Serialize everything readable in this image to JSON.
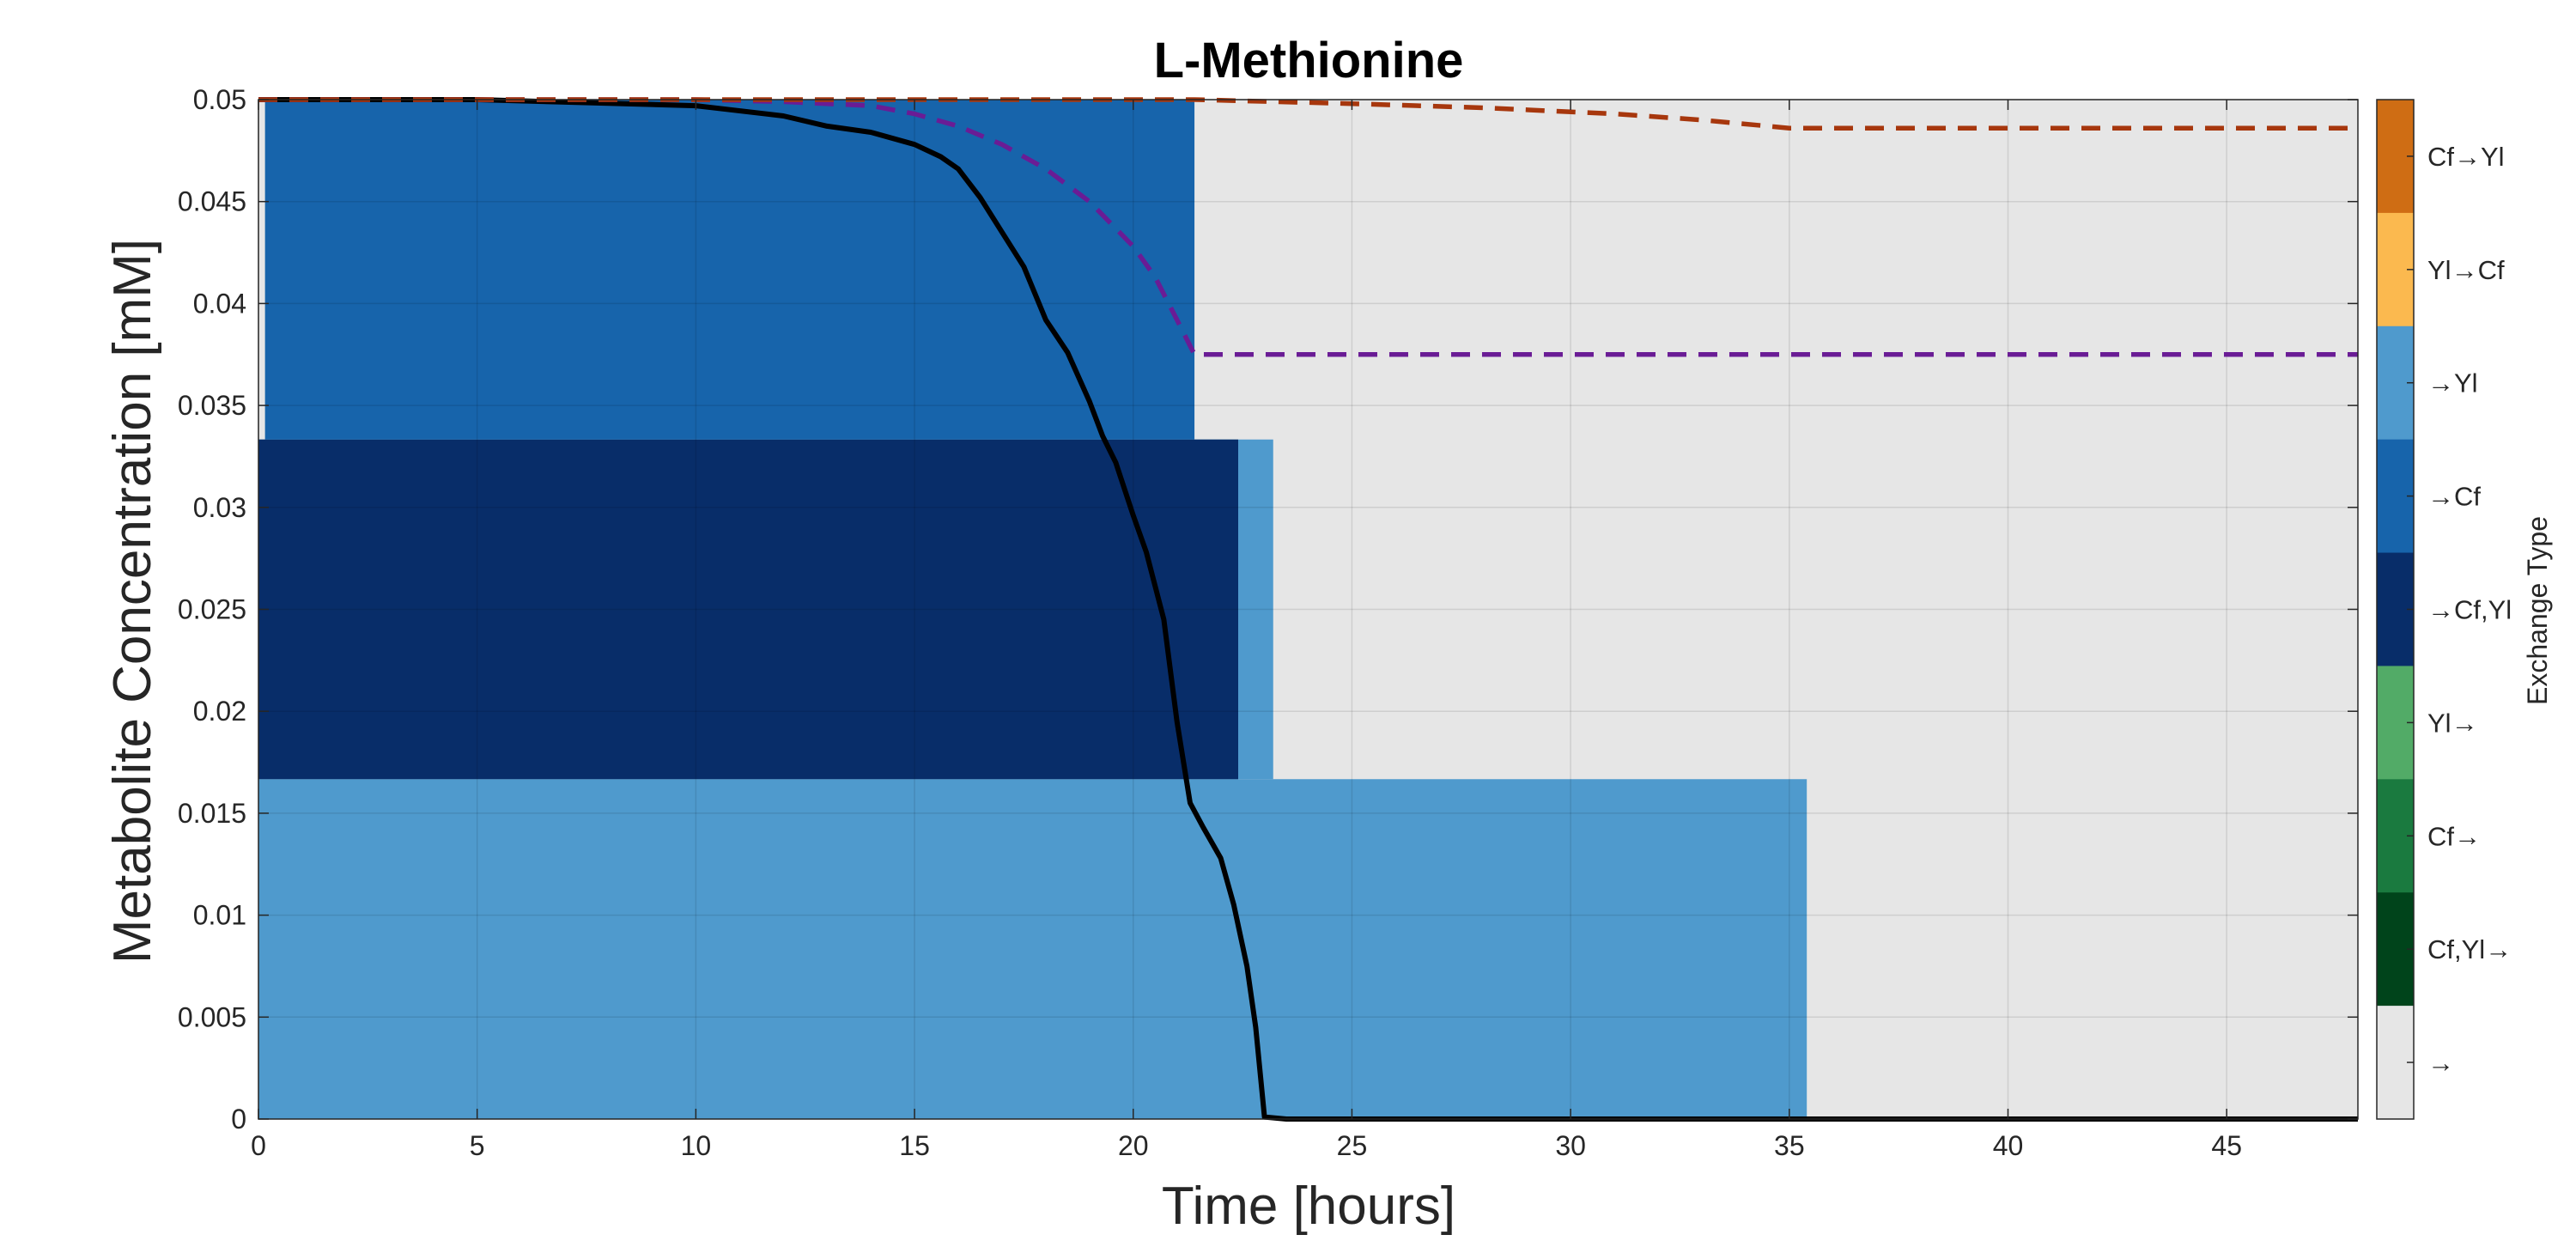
{
  "chart_data": {
    "type": "area",
    "title": "L-Methionine",
    "xlabel": "Time [hours]",
    "ylabel": "Metabolite Concentration [mM]",
    "xlim": [
      0,
      48
    ],
    "ylim": [
      0,
      0.05
    ],
    "xticks": [
      0,
      5,
      10,
      15,
      20,
      25,
      30,
      35,
      40,
      45
    ],
    "xtick_labels": [
      "0",
      "5",
      "10",
      "15",
      "20",
      "25",
      "30",
      "35",
      "40",
      "45"
    ],
    "yticks": [
      0,
      0.005,
      0.01,
      0.015,
      0.02,
      0.025,
      0.03,
      0.035,
      0.04,
      0.045,
      0.05
    ],
    "ytick_labels": [
      "0",
      "0.005",
      "0.01",
      "0.015",
      "0.02",
      "0.025",
      "0.03",
      "0.035",
      "0.04",
      "0.045",
      "0.05"
    ],
    "grid": true,
    "background_color": "#e6e6e6",
    "exchange_blocks": [
      {
        "type": "→Yl",
        "x0": 0,
        "x1": 35.4,
        "y0": 0,
        "y1": 0.01667,
        "color": "#4f9acd"
      },
      {
        "type": "→Yl",
        "x0": 0,
        "x1": 23.2,
        "y0": 0.01667,
        "y1": 0.03333,
        "color": "#4f9acd"
      },
      {
        "type": "→Cf,Yl",
        "x0": 0,
        "x1": 22.4,
        "y0": 0.01667,
        "y1": 0.03333,
        "color": "#082d69"
      },
      {
        "type": "→Cf",
        "x0": 0.15,
        "x1": 21.4,
        "y0": 0.03333,
        "y1": 0.05,
        "color": "#1764ab"
      }
    ],
    "series": [
      {
        "style": "solid",
        "color": "#000000",
        "x": [
          0,
          5,
          10,
          12,
          13,
          14,
          15,
          15.6,
          16,
          16.5,
          17,
          17.5,
          18,
          18.5,
          19,
          19.3,
          19.6,
          20,
          20.3,
          20.7,
          21,
          21.3,
          21.6,
          22,
          22.3,
          22.6,
          22.8,
          23,
          23.5,
          30,
          48
        ],
        "y": [
          0.05,
          0.05,
          0.0497,
          0.0492,
          0.0487,
          0.0484,
          0.0478,
          0.0472,
          0.0466,
          0.0452,
          0.0435,
          0.0418,
          0.0392,
          0.0376,
          0.0352,
          0.0335,
          0.0322,
          0.0296,
          0.0278,
          0.0245,
          0.0195,
          0.0155,
          0.0143,
          0.0128,
          0.0105,
          0.0075,
          0.0045,
          0.0001,
          0,
          0,
          0
        ]
      },
      {
        "style": "dashed",
        "color": "#6a1c95",
        "x": [
          0,
          10,
          12,
          14,
          15,
          16,
          17,
          18,
          19,
          20,
          20.5,
          21,
          21.4,
          22,
          30,
          48
        ],
        "y": [
          0.05,
          0.05,
          0.0499,
          0.0497,
          0.0493,
          0.0487,
          0.0478,
          0.0466,
          0.045,
          0.0428,
          0.0413,
          0.0392,
          0.0375,
          0.0375,
          0.0375,
          0.0375
        ]
      },
      {
        "style": "dashed",
        "color": "#a7370d",
        "x": [
          0,
          15,
          21.4,
          25,
          28,
          31,
          33,
          35,
          40,
          48
        ],
        "y": [
          0.05,
          0.05,
          0.05,
          0.0498,
          0.0496,
          0.0493,
          0.049,
          0.0486,
          0.0486,
          0.0486
        ]
      }
    ],
    "colorbar": {
      "title": "Exchange Type",
      "entries": [
        {
          "label": "Cf→Yl",
          "color": "#cf6d14"
        },
        {
          "label": "Yl→Cf",
          "color": "#fbb94f"
        },
        {
          "label": "→Yl",
          "color": "#4f9acd"
        },
        {
          "label": "→Cf",
          "color": "#1764ab"
        },
        {
          "label": "→Cf,Yl",
          "color": "#082d69"
        },
        {
          "label": "Yl→",
          "color": "#52ab67"
        },
        {
          "label": "Cf→",
          "color": "#1a7a3f"
        },
        {
          "label": "Cf,Yl→",
          "color": "#00441b"
        },
        {
          "label": "→",
          "color": "#e6e6e6"
        }
      ]
    }
  }
}
